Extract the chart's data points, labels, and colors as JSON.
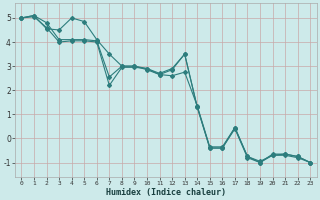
{
  "xlabel": "Humidex (Indice chaleur)",
  "background_color": "#cdeaea",
  "grid_color": "#b8d8d8",
  "line_color": "#2d7d7d",
  "xlim": [
    -0.5,
    23.5
  ],
  "ylim": [
    -1.6,
    5.6
  ],
  "xticks": [
    0,
    1,
    2,
    3,
    4,
    5,
    6,
    7,
    8,
    9,
    10,
    11,
    12,
    13,
    14,
    15,
    16,
    17,
    18,
    19,
    20,
    21,
    22,
    23
  ],
  "yticks": [
    -1,
    0,
    1,
    2,
    3,
    4,
    5
  ],
  "line1_x": [
    0,
    1,
    2,
    3,
    4,
    5,
    6,
    7,
    8,
    9,
    10,
    11,
    12,
    13,
    14,
    15,
    16,
    17,
    18,
    19,
    20,
    21,
    22,
    23
  ],
  "line1_y": [
    5.0,
    5.1,
    4.8,
    4.1,
    4.1,
    4.1,
    4.05,
    2.55,
    3.0,
    3.0,
    2.85,
    2.65,
    2.6,
    2.75,
    1.35,
    -0.35,
    -0.35,
    0.45,
    -0.75,
    -1.0,
    -0.65,
    -0.65,
    -0.75,
    -1.0
  ],
  "line2_x": [
    0,
    1,
    2,
    3,
    4,
    5,
    6,
    7,
    8,
    9,
    10,
    11,
    12,
    13,
    14,
    15,
    16,
    17,
    18,
    19,
    20,
    21,
    22,
    23
  ],
  "line2_y": [
    5.0,
    5.1,
    4.55,
    4.5,
    5.0,
    4.85,
    4.1,
    3.5,
    3.0,
    3.0,
    2.9,
    2.65,
    2.85,
    3.5,
    1.3,
    -0.4,
    -0.4,
    0.4,
    -0.8,
    -1.0,
    -0.7,
    -0.7,
    -0.8,
    -1.0
  ],
  "line3_x": [
    0,
    1,
    2,
    3,
    4,
    5,
    6,
    7,
    8,
    9,
    10,
    11,
    12,
    13,
    14,
    15,
    16,
    17,
    18,
    19,
    20,
    21,
    22,
    23
  ],
  "line3_y": [
    5.0,
    5.05,
    4.6,
    4.0,
    4.05,
    4.05,
    4.0,
    2.2,
    2.95,
    2.95,
    2.9,
    2.7,
    2.9,
    3.5,
    1.3,
    -0.4,
    -0.4,
    0.45,
    -0.75,
    -0.95,
    -0.7,
    -0.65,
    -0.75,
    -1.0
  ]
}
